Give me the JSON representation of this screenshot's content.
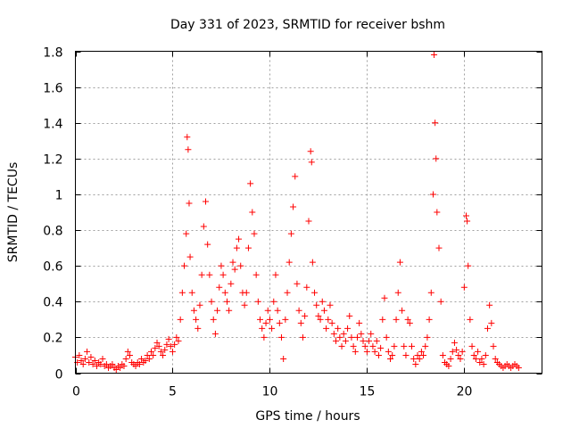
{
  "chart_data": {
    "type": "scatter",
    "title": "Day 331 of 2023, SRMTID for receiver bshm",
    "xlabel": "GPS time / hours",
    "ylabel": "SRMTID / TECUs",
    "xlim": [
      0,
      24
    ],
    "ylim": [
      0,
      1.8
    ],
    "xticks": [
      0,
      5,
      10,
      15,
      20
    ],
    "xtick_labels": [
      "0",
      "5",
      "10",
      "15",
      "20"
    ],
    "yticks": [
      0,
      0.2,
      0.4,
      0.6,
      0.8,
      1,
      1.2,
      1.4,
      1.6,
      1.8
    ],
    "ytick_labels": [
      "0",
      "0.2",
      "0.4",
      "0.6",
      "0.8",
      "1",
      "1.2",
      "1.4",
      "1.6",
      "1.8"
    ],
    "grid": true,
    "marker": "+",
    "color": "#ff0000",
    "series": [
      {
        "name": "SRMTID",
        "points": [
          [
            0.0,
            0.09
          ],
          [
            0.1,
            0.06
          ],
          [
            0.2,
            0.1
          ],
          [
            0.3,
            0.07
          ],
          [
            0.4,
            0.05
          ],
          [
            0.5,
            0.08
          ],
          [
            0.6,
            0.12
          ],
          [
            0.7,
            0.06
          ],
          [
            0.8,
            0.09
          ],
          [
            0.9,
            0.05
          ],
          [
            1.0,
            0.07
          ],
          [
            1.1,
            0.04
          ],
          [
            1.2,
            0.06
          ],
          [
            1.3,
            0.05
          ],
          [
            1.4,
            0.08
          ],
          [
            1.5,
            0.04
          ],
          [
            1.6,
            0.05
          ],
          [
            1.7,
            0.03
          ],
          [
            1.8,
            0.04
          ],
          [
            1.9,
            0.05
          ],
          [
            2.0,
            0.03
          ],
          [
            2.1,
            0.02
          ],
          [
            2.2,
            0.04
          ],
          [
            2.3,
            0.03
          ],
          [
            2.4,
            0.05
          ],
          [
            2.5,
            0.04
          ],
          [
            2.6,
            0.08
          ],
          [
            2.7,
            0.12
          ],
          [
            2.8,
            0.1
          ],
          [
            2.9,
            0.06
          ],
          [
            3.0,
            0.05
          ],
          [
            3.1,
            0.04
          ],
          [
            3.2,
            0.06
          ],
          [
            3.3,
            0.05
          ],
          [
            3.4,
            0.08
          ],
          [
            3.5,
            0.06
          ],
          [
            3.6,
            0.07
          ],
          [
            3.7,
            0.1
          ],
          [
            3.8,
            0.08
          ],
          [
            3.9,
            0.12
          ],
          [
            4.0,
            0.1
          ],
          [
            4.1,
            0.14
          ],
          [
            4.2,
            0.17
          ],
          [
            4.3,
            0.15
          ],
          [
            4.4,
            0.12
          ],
          [
            4.5,
            0.1
          ],
          [
            4.6,
            0.13
          ],
          [
            4.7,
            0.16
          ],
          [
            4.8,
            0.19
          ],
          [
            4.9,
            0.15
          ],
          [
            5.0,
            0.12
          ],
          [
            5.1,
            0.16
          ],
          [
            5.2,
            0.2
          ],
          [
            5.3,
            0.18
          ],
          [
            5.4,
            0.3
          ],
          [
            5.5,
            0.45
          ],
          [
            5.6,
            0.6
          ],
          [
            5.7,
            0.78
          ],
          [
            5.75,
            1.32
          ],
          [
            5.8,
            1.25
          ],
          [
            5.85,
            0.95
          ],
          [
            5.9,
            0.65
          ],
          [
            6.0,
            0.45
          ],
          [
            6.1,
            0.35
          ],
          [
            6.2,
            0.3
          ],
          [
            6.3,
            0.25
          ],
          [
            6.4,
            0.38
          ],
          [
            6.5,
            0.55
          ],
          [
            6.6,
            0.82
          ],
          [
            6.7,
            0.96
          ],
          [
            6.8,
            0.72
          ],
          [
            6.9,
            0.55
          ],
          [
            7.0,
            0.4
          ],
          [
            7.1,
            0.3
          ],
          [
            7.2,
            0.22
          ],
          [
            7.3,
            0.35
          ],
          [
            7.4,
            0.48
          ],
          [
            7.5,
            0.6
          ],
          [
            7.6,
            0.55
          ],
          [
            7.7,
            0.45
          ],
          [
            7.8,
            0.4
          ],
          [
            7.9,
            0.35
          ],
          [
            8.0,
            0.5
          ],
          [
            8.1,
            0.62
          ],
          [
            8.2,
            0.58
          ],
          [
            8.3,
            0.7
          ],
          [
            8.4,
            0.75
          ],
          [
            8.5,
            0.6
          ],
          [
            8.6,
            0.45
          ],
          [
            8.7,
            0.38
          ],
          [
            8.8,
            0.45
          ],
          [
            8.9,
            0.7
          ],
          [
            9.0,
            1.06
          ],
          [
            9.1,
            0.9
          ],
          [
            9.2,
            0.78
          ],
          [
            9.3,
            0.55
          ],
          [
            9.4,
            0.4
          ],
          [
            9.5,
            0.3
          ],
          [
            9.6,
            0.25
          ],
          [
            9.7,
            0.2
          ],
          [
            9.8,
            0.28
          ],
          [
            9.9,
            0.35
          ],
          [
            10.0,
            0.3
          ],
          [
            10.1,
            0.25
          ],
          [
            10.2,
            0.4
          ],
          [
            10.3,
            0.55
          ],
          [
            10.4,
            0.35
          ],
          [
            10.5,
            0.28
          ],
          [
            10.6,
            0.2
          ],
          [
            10.7,
            0.08
          ],
          [
            10.8,
            0.3
          ],
          [
            10.9,
            0.45
          ],
          [
            11.0,
            0.62
          ],
          [
            11.1,
            0.78
          ],
          [
            11.2,
            0.93
          ],
          [
            11.3,
            1.1
          ],
          [
            11.4,
            0.5
          ],
          [
            11.5,
            0.35
          ],
          [
            11.6,
            0.28
          ],
          [
            11.7,
            0.2
          ],
          [
            11.8,
            0.32
          ],
          [
            11.9,
            0.48
          ],
          [
            12.0,
            0.85
          ],
          [
            12.1,
            1.24
          ],
          [
            12.15,
            1.18
          ],
          [
            12.2,
            0.62
          ],
          [
            12.3,
            0.45
          ],
          [
            12.4,
            0.38
          ],
          [
            12.5,
            0.32
          ],
          [
            12.6,
            0.3
          ],
          [
            12.7,
            0.4
          ],
          [
            12.8,
            0.35
          ],
          [
            12.9,
            0.25
          ],
          [
            13.0,
            0.3
          ],
          [
            13.1,
            0.38
          ],
          [
            13.2,
            0.28
          ],
          [
            13.3,
            0.22
          ],
          [
            13.4,
            0.18
          ],
          [
            13.5,
            0.25
          ],
          [
            13.6,
            0.2
          ],
          [
            13.7,
            0.15
          ],
          [
            13.8,
            0.22
          ],
          [
            13.9,
            0.18
          ],
          [
            14.0,
            0.25
          ],
          [
            14.1,
            0.32
          ],
          [
            14.2,
            0.2
          ],
          [
            14.3,
            0.15
          ],
          [
            14.4,
            0.12
          ],
          [
            14.5,
            0.2
          ],
          [
            14.6,
            0.28
          ],
          [
            14.7,
            0.22
          ],
          [
            14.8,
            0.18
          ],
          [
            14.9,
            0.15
          ],
          [
            15.0,
            0.12
          ],
          [
            15.1,
            0.18
          ],
          [
            15.2,
            0.22
          ],
          [
            15.3,
            0.15
          ],
          [
            15.4,
            0.12
          ],
          [
            15.5,
            0.18
          ],
          [
            15.6,
            0.1
          ],
          [
            15.7,
            0.14
          ],
          [
            15.8,
            0.3
          ],
          [
            15.9,
            0.42
          ],
          [
            16.0,
            0.2
          ],
          [
            16.1,
            0.12
          ],
          [
            16.2,
            0.08
          ],
          [
            16.3,
            0.1
          ],
          [
            16.4,
            0.15
          ],
          [
            16.5,
            0.3
          ],
          [
            16.6,
            0.45
          ],
          [
            16.7,
            0.62
          ],
          [
            16.8,
            0.35
          ],
          [
            16.9,
            0.15
          ],
          [
            17.0,
            0.1
          ],
          [
            17.1,
            0.3
          ],
          [
            17.2,
            0.28
          ],
          [
            17.3,
            0.15
          ],
          [
            17.4,
            0.08
          ],
          [
            17.5,
            0.05
          ],
          [
            17.6,
            0.1
          ],
          [
            17.7,
            0.08
          ],
          [
            17.8,
            0.12
          ],
          [
            17.9,
            0.1
          ],
          [
            18.0,
            0.15
          ],
          [
            18.1,
            0.2
          ],
          [
            18.2,
            0.3
          ],
          [
            18.3,
            0.45
          ],
          [
            18.4,
            1.0
          ],
          [
            18.45,
            1.78
          ],
          [
            18.5,
            1.4
          ],
          [
            18.55,
            1.2
          ],
          [
            18.6,
            0.9
          ],
          [
            18.7,
            0.7
          ],
          [
            18.8,
            0.4
          ],
          [
            18.9,
            0.1
          ],
          [
            19.0,
            0.06
          ],
          [
            19.1,
            0.05
          ],
          [
            19.2,
            0.04
          ],
          [
            19.3,
            0.08
          ],
          [
            19.4,
            0.12
          ],
          [
            19.5,
            0.17
          ],
          [
            19.6,
            0.13
          ],
          [
            19.7,
            0.1
          ],
          [
            19.8,
            0.08
          ],
          [
            19.9,
            0.12
          ],
          [
            20.0,
            0.48
          ],
          [
            20.1,
            0.88
          ],
          [
            20.15,
            0.85
          ],
          [
            20.2,
            0.6
          ],
          [
            20.3,
            0.3
          ],
          [
            20.4,
            0.15
          ],
          [
            20.5,
            0.1
          ],
          [
            20.6,
            0.08
          ],
          [
            20.7,
            0.12
          ],
          [
            20.8,
            0.06
          ],
          [
            20.9,
            0.08
          ],
          [
            21.0,
            0.05
          ],
          [
            21.1,
            0.1
          ],
          [
            21.2,
            0.25
          ],
          [
            21.3,
            0.38
          ],
          [
            21.4,
            0.28
          ],
          [
            21.5,
            0.15
          ],
          [
            21.6,
            0.08
          ],
          [
            21.7,
            0.06
          ],
          [
            21.8,
            0.05
          ],
          [
            21.9,
            0.04
          ],
          [
            22.0,
            0.03
          ],
          [
            22.1,
            0.04
          ],
          [
            22.2,
            0.05
          ],
          [
            22.3,
            0.04
          ],
          [
            22.4,
            0.03
          ],
          [
            22.5,
            0.04
          ],
          [
            22.6,
            0.05
          ],
          [
            22.7,
            0.04
          ],
          [
            22.8,
            0.03
          ]
        ]
      }
    ]
  }
}
